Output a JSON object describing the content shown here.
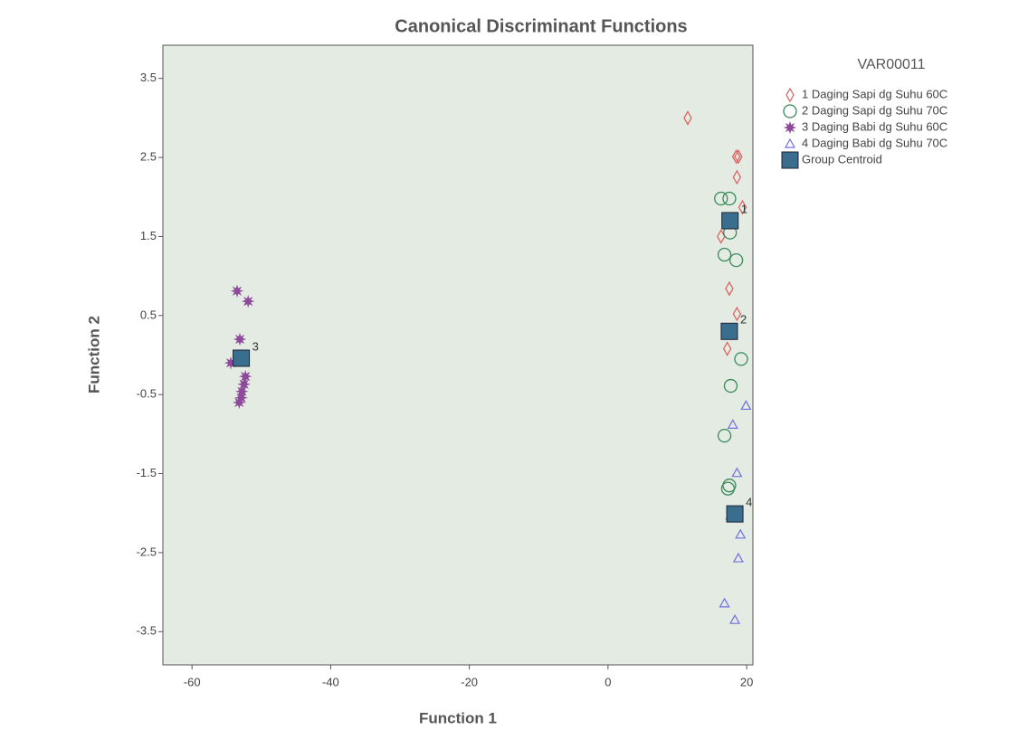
{
  "chart_data": {
    "type": "scatter",
    "title": "Canonical Discriminant Functions",
    "x_label": "Function 1",
    "y_label": "Function 2",
    "legend_title": "VAR00011",
    "xlim": [
      -64.2,
      20.9
    ],
    "ylim": [
      -3.92,
      3.92
    ],
    "xticks": [
      -60,
      -40,
      -20,
      0,
      20
    ],
    "yticks": [
      3.5,
      2.5,
      1.5,
      0.5,
      -0.5,
      -1.5,
      -2.5,
      -3.5
    ],
    "series": [
      {
        "name": "1 Daging Sapi dg Suhu 60C",
        "color": "#e05a5a",
        "marker": "diamond",
        "x": [
          11.5,
          18.5,
          18.8,
          18.6,
          19.4,
          16.3,
          17.5,
          18.6,
          17.2
        ],
        "values": [
          3.0,
          2.51,
          2.51,
          2.25,
          1.87,
          1.5,
          0.84,
          0.52,
          0.08
        ]
      },
      {
        "name": "2 Daging Sapi dg Suhu 70C",
        "color": "#3a8a5a",
        "marker": "circle",
        "x": [
          16.3,
          17.5,
          17.6,
          16.8,
          18.5,
          19.2,
          17.7,
          16.8,
          17.3,
          17.5
        ],
        "values": [
          1.98,
          1.98,
          1.55,
          1.27,
          1.2,
          -0.05,
          -0.39,
          -1.02,
          -1.69,
          -1.65
        ]
      },
      {
        "name": "3 Daging Babi dg Suhu 60C",
        "color": "#8e4a9a",
        "marker": "star",
        "x": [
          -53.5,
          -51.9,
          -53.1,
          -54.4,
          -52.3,
          -52.5,
          -52.8,
          -52.9,
          -53.2
        ],
        "values": [
          0.81,
          0.68,
          0.2,
          -0.1,
          -0.27,
          -0.37,
          -0.46,
          -0.54,
          -0.6
        ]
      },
      {
        "name": "4 Daging Babi dg Suhu 70C",
        "color": "#7070e0",
        "marker": "triangle",
        "x": [
          19.9,
          18.0,
          18.6,
          17.7,
          19.1,
          18.8,
          16.8,
          18.3
        ],
        "values": [
          -0.64,
          -0.88,
          -1.49,
          -2.03,
          -2.27,
          -2.57,
          -3.14,
          -3.35
        ]
      },
      {
        "name": "Group Centroid",
        "color": "#3a6e8f",
        "marker": "square",
        "x": [
          17.6,
          17.5,
          -52.9,
          18.3
        ],
        "values": [
          1.7,
          0.3,
          -0.04,
          -2.01
        ],
        "labels": [
          "1",
          "2",
          "3",
          "4"
        ]
      }
    ]
  }
}
